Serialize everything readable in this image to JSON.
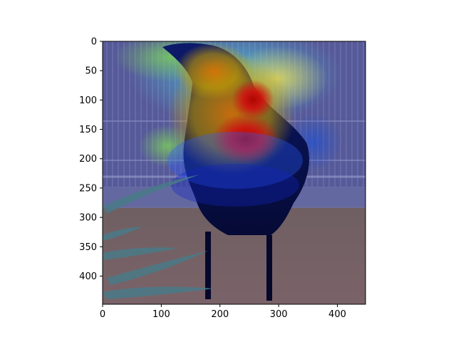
{
  "figure": {
    "image_description_free": true,
    "x_axis": {
      "ticks": [
        0,
        100,
        200,
        300,
        400
      ],
      "limits": [
        0,
        448
      ]
    },
    "y_axis": {
      "ticks": [
        0,
        50,
        100,
        150,
        200,
        250,
        300,
        350,
        400
      ],
      "limits": [
        0,
        448
      ],
      "inverted": true
    },
    "overlay": {
      "colormap": "jet",
      "alpha": 0.45
    }
  },
  "colors": {
    "frame": "#000000",
    "background": "#ffffff"
  }
}
